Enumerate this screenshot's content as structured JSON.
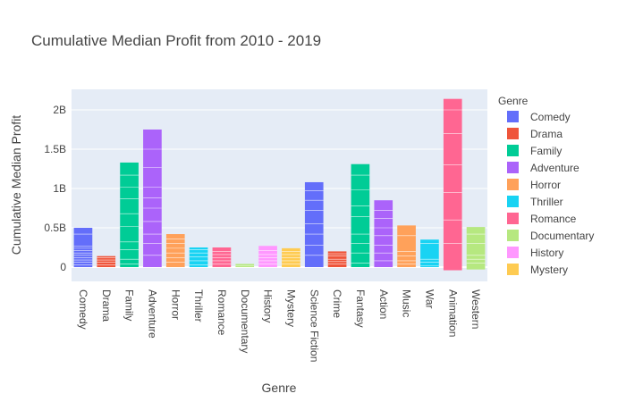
{
  "chart_data": {
    "type": "bar",
    "title": "Cumulative Median Profit from 2010 - 2019",
    "xlabel": "Genre",
    "ylabel": "Cumulative Median Profit",
    "ylim": [
      -0.17,
      2.2
    ],
    "y_unit": "billions",
    "y_ticks": [
      0,
      0.5,
      1,
      1.5,
      2
    ],
    "y_tick_labels": [
      "0",
      "0.5B",
      "1B",
      "1.5B",
      "2B"
    ],
    "grid": true,
    "legend_title": "Genre",
    "legend_position": "right",
    "stacked": true,
    "categories": [
      "Comedy",
      "Drama",
      "Family",
      "Adventure",
      "Horror",
      "Thriller",
      "Romance",
      "Documentary",
      "History",
      "Mystery",
      "Science Fiction",
      "Crime",
      "Fantasy",
      "Action",
      "Music",
      "War",
      "Animation",
      "Western"
    ],
    "values": [
      0.5,
      0.14,
      1.33,
      1.75,
      0.42,
      0.25,
      0.25,
      0.04,
      0.27,
      0.24,
      1.08,
      0.2,
      1.31,
      0.85,
      0.53,
      0.35,
      2.14,
      0.51
    ],
    "min_values": [
      0,
      0,
      0,
      0,
      0,
      0,
      0,
      0,
      0,
      0,
      0,
      0,
      0,
      0,
      0,
      0,
      -0.04,
      -0.03
    ],
    "series": [
      {
        "name": "Comedy",
        "color": "#636efa"
      },
      {
        "name": "Drama",
        "color": "#EF553B"
      },
      {
        "name": "Family",
        "color": "#00cc96"
      },
      {
        "name": "Adventure",
        "color": "#ab63fa"
      },
      {
        "name": "Horror",
        "color": "#FFA15A"
      },
      {
        "name": "Thriller",
        "color": "#19d3f3"
      },
      {
        "name": "Romance",
        "color": "#FF6692"
      },
      {
        "name": "Documentary",
        "color": "#B6E880"
      },
      {
        "name": "History",
        "color": "#FF97FF"
      },
      {
        "name": "Mystery",
        "color": "#FECB52"
      },
      {
        "name": "Science Fiction",
        "color": "#636efa"
      },
      {
        "name": "Crime",
        "color": "#EF553B"
      },
      {
        "name": "Fantasy",
        "color": "#00cc96"
      },
      {
        "name": "Action",
        "color": "#ab63fa"
      },
      {
        "name": "Music",
        "color": "#FFA15A"
      },
      {
        "name": "War",
        "color": "#19d3f3"
      },
      {
        "name": "Animation",
        "color": "#FF6692"
      },
      {
        "name": "Western",
        "color": "#B6E880"
      }
    ],
    "legend_entries": [
      "Comedy",
      "Drama",
      "Family",
      "Adventure",
      "Horror",
      "Thriller",
      "Romance",
      "Documentary",
      "History",
      "Mystery"
    ],
    "segments": [
      [
        0.03,
        0.06,
        0.09,
        0.12,
        0.15,
        0.18,
        0.21,
        0.24,
        0.27,
        0.42
      ],
      [
        0.03,
        0.06,
        0.09,
        0.12
      ],
      [
        0.04,
        0.1,
        0.22,
        0.32,
        0.52,
        0.68,
        0.87,
        1.02,
        1.17
      ],
      [
        0.15,
        0.3,
        0.42,
        0.58,
        0.75,
        0.88,
        1.02,
        1.27,
        1.5
      ],
      [
        0.06,
        0.12,
        0.18,
        0.24,
        0.3,
        0.36
      ],
      [
        0.03,
        0.08,
        0.13,
        0.18,
        0.22
      ],
      [
        0.04,
        0.08,
        0.12,
        0.16,
        0.2
      ],
      [
        0.02
      ],
      [
        0.04,
        0.08,
        0.12,
        0.16,
        0.21
      ],
      [
        0.04,
        0.08,
        0.12,
        0.16,
        0.2
      ],
      [
        0.15,
        0.28,
        0.42,
        0.55,
        0.72,
        0.85,
        0.97
      ],
      [
        0.04,
        0.07,
        0.1,
        0.14,
        0.17
      ],
      [
        0.05,
        0.18,
        0.3,
        0.42,
        0.64,
        0.78,
        0.98,
        1.17
      ],
      [
        0.08,
        0.18,
        0.28,
        0.4,
        0.5,
        0.62,
        0.72
      ],
      [
        0.04,
        0.08,
        0.14,
        0.2,
        0.4
      ],
      [
        0.02,
        0.06,
        0.1,
        0.3
      ],
      [
        0.3,
        0.6,
        0.95,
        1.3,
        1.7,
        2.0
      ],
      [
        0.05,
        0.1,
        0.15,
        0.3,
        0.42
      ]
    ]
  }
}
